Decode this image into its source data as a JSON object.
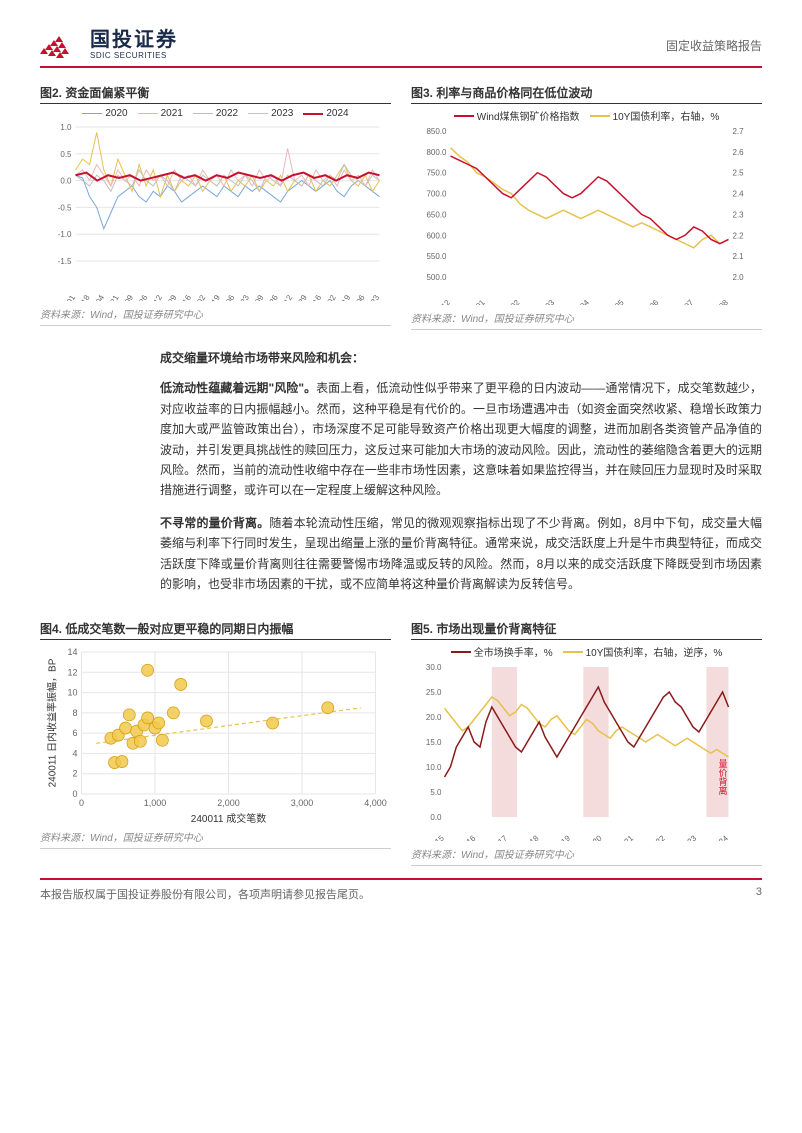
{
  "header": {
    "logo_cn": "国投证券",
    "logo_en": "SDIC SECURITIES",
    "report_type": "固定收益策略报告"
  },
  "chart2": {
    "title": "图2. 资金面偏紧平衡",
    "type": "line",
    "legend": [
      "2020",
      "2021",
      "2022",
      "2023",
      "2024"
    ],
    "colors": [
      "#7aa8d9",
      "#e6c24d",
      "#bfbfbf",
      "#e8b8b8",
      "#c8102e"
    ],
    "line_widths": [
      1,
      1,
      1,
      1,
      2
    ],
    "background_color": "#ffffff",
    "grid_color": "#e6e6e6",
    "ylim": [
      -1.5,
      1.0
    ],
    "ytick_step": 0.5,
    "x_labels": [
      "01-01",
      "01-18",
      "02-04",
      "02-21",
      "03-09",
      "03-26",
      "04-12",
      "04-29",
      "05-16",
      "06-02",
      "06-19",
      "07-06",
      "07-23",
      "08-09",
      "08-26",
      "09-12",
      "09-29",
      "10-16",
      "11-02",
      "11-19",
      "12-06",
      "12-23"
    ],
    "label_fontsize": 8,
    "series": {
      "2020": [
        0.1,
        0.05,
        -0.3,
        -0.5,
        -0.9,
        -0.6,
        -0.3,
        -0.2,
        -0.1,
        -0.3,
        -0.4,
        -0.2,
        -0.3,
        -0.1,
        -0.2,
        -0.4,
        -0.3,
        -0.2,
        -0.1,
        -0.2,
        -0.3,
        -0.1,
        -0.2,
        -0.3,
        -0.1,
        -0.2,
        -0.1,
        -0.2,
        -0.3,
        -0.4,
        -0.2,
        -0.1,
        0.0,
        -0.1,
        -0.2,
        -0.1,
        0.0,
        -0.2,
        -0.3,
        -0.1,
        0.0,
        -0.1,
        -0.2,
        -0.3
      ],
      "2021": [
        0.2,
        0.4,
        0.3,
        0.9,
        0.2,
        -0.1,
        0.4,
        0.1,
        -0.2,
        0.3,
        -0.1,
        0.2,
        -0.3,
        0.1,
        -0.2,
        0.0,
        -0.1,
        0.1,
        -0.2,
        0.0,
        -0.1,
        0.1,
        -0.2,
        0.0,
        -0.1,
        0.1,
        -0.2,
        0.0,
        -0.1,
        0.1,
        -0.2,
        0.0,
        -0.1,
        0.1,
        -0.2,
        0.0,
        -0.1,
        0.1,
        0.3,
        0.0,
        -0.1,
        0.1,
        -0.2,
        0.0
      ],
      "2022": [
        0.1,
        0.0,
        -0.1,
        0.1,
        0.0,
        -0.2,
        0.1,
        0.0,
        -0.1,
        0.2,
        0.0,
        -0.1,
        0.1,
        0.0,
        -0.2,
        0.1,
        0.0,
        -0.1,
        0.1,
        0.0,
        -0.1,
        0.1,
        0.0,
        -0.1,
        0.1,
        0.0,
        -0.2,
        0.1,
        0.0,
        -0.1,
        0.1,
        0.0,
        -0.1,
        0.1,
        0.0,
        -0.1,
        0.1,
        0.0,
        0.3,
        0.1,
        0.0,
        -0.1,
        0.1,
        0.0
      ],
      "2023": [
        0.1,
        0.2,
        0.0,
        0.3,
        0.1,
        -0.1,
        0.2,
        0.0,
        0.1,
        -0.1,
        0.2,
        0.0,
        0.1,
        -0.1,
        0.2,
        0.0,
        0.1,
        -0.1,
        0.2,
        0.0,
        0.1,
        -0.1,
        0.2,
        0.0,
        0.1,
        -0.1,
        0.2,
        0.0,
        0.1,
        -0.1,
        0.6,
        0.0,
        0.1,
        -0.1,
        0.2,
        0.0,
        0.1,
        -0.1,
        0.2,
        0.0,
        0.1,
        -0.1,
        0.2,
        0.0
      ],
      "2024": [
        0.1,
        0.15,
        0.0,
        0.1,
        0.05,
        0.1,
        0.0,
        0.05,
        0.1,
        0.15,
        0.05,
        0.1,
        0.0,
        0.1,
        0.05,
        0.15,
        0.1,
        0.05,
        0.1,
        0.0,
        0.1,
        0.15,
        0.05,
        0.1,
        0.0,
        0.1,
        0.05,
        0.15,
        0.1
      ]
    },
    "source": "资料来源：Wind，国投证券研究中心"
  },
  "chart3": {
    "title": "图3. 利率与商品价格同在低位波动",
    "type": "line",
    "legend": [
      "Wind煤焦钢矿价格指数",
      "10Y国债利率，右轴，%"
    ],
    "colors": [
      "#c8102e",
      "#e6c24d"
    ],
    "line_widths": [
      1.5,
      1.5
    ],
    "background_color": "#ffffff",
    "y1_lim": [
      500,
      850
    ],
    "y1_tick_step": 50,
    "y2_lim": [
      2.0,
      2.7
    ],
    "y2_tick_step": 0.1,
    "x_labels": [
      "23-12",
      "24-01",
      "24-02",
      "24-03",
      "24-04",
      "24-05",
      "24-06",
      "24-07",
      "24-08"
    ],
    "label_fontsize": 8,
    "series": {
      "index": [
        790,
        780,
        770,
        760,
        740,
        720,
        700,
        690,
        710,
        730,
        750,
        740,
        720,
        700,
        690,
        700,
        720,
        740,
        730,
        710,
        690,
        670,
        650,
        640,
        620,
        600,
        590,
        600,
        620,
        610,
        590,
        580,
        590
      ],
      "yield": [
        2.62,
        2.58,
        2.55,
        2.5,
        2.48,
        2.45,
        2.42,
        2.4,
        2.35,
        2.32,
        2.3,
        2.28,
        2.3,
        2.32,
        2.3,
        2.28,
        2.3,
        2.32,
        2.3,
        2.28,
        2.26,
        2.24,
        2.26,
        2.24,
        2.22,
        2.2,
        2.18,
        2.16,
        2.14,
        2.18,
        2.2,
        2.16,
        2.18
      ]
    },
    "source": "资料来源：Wind，国投证券研究中心"
  },
  "body": {
    "lead": "成交缩量环境给市场带来风险和机会：",
    "p1_bold": "低流动性蕴藏着远期\"风险\"。",
    "p1": "表面上看，低流动性似乎带来了更平稳的日内波动——通常情况下，成交笔数越少，对应收益率的日内振幅越小。然而，这种平稳是有代价的。一旦市场遭遇冲击（如资金面突然收紧、稳增长政策力度加大或严监管政策出台），市场深度不足可能导致资产价格出现更大幅度的调整，进而加剧各类资管产品净值的波动，并引发更具挑战性的赎回压力，这反过来可能加大市场的波动风险。因此，流动性的萎缩隐含着更大的远期风险。然而，当前的流动性收缩中存在一些非市场性因素，这意味着如果监控得当，并在赎回压力显现时及时采取措施进行调整，或许可以在一定程度上缓解这种风险。",
    "p2_bold": "不寻常的量价背离。",
    "p2": "随着本轮流动性压缩，常见的微观观察指标出现了不少背离。例如，8月中下旬，成交量大幅萎缩与利率下行同时发生，呈现出缩量上涨的量价背离特征。通常来说，成交活跃度上升是牛市典型特征，而成交活跃度下降或量价背离则往往需要警惕市场降温或反转的风险。然而，8月以来的成交活跃度下降既受到市场因素的影响，也受非市场因素的干扰，或不应简单将这种量价背离解读为反转信号。"
  },
  "chart4": {
    "title": "图4. 低成交笔数一般对应更平稳的同期日内振幅",
    "type": "scatter",
    "xlabel": "240011 成交笔数",
    "ylabel": "240011 日内收益率振幅，BP",
    "label_fontsize": 10,
    "background_color": "#ffffff",
    "grid_color": "#e6e6e6",
    "xlim": [
      0,
      4000
    ],
    "xtick_step": 1000,
    "ylim": [
      0,
      14
    ],
    "ytick_step": 2,
    "marker_color": "#f2c94c",
    "marker_edge": "#d4a017",
    "marker_size": 6,
    "trend_color": "#e6c24d",
    "trend_dash": "4 3",
    "points": [
      [
        400,
        5.5
      ],
      [
        450,
        3.1
      ],
      [
        500,
        5.8
      ],
      [
        550,
        3.2
      ],
      [
        600,
        6.5
      ],
      [
        650,
        7.8
      ],
      [
        700,
        5.0
      ],
      [
        750,
        6.2
      ],
      [
        800,
        5.2
      ],
      [
        850,
        6.8
      ],
      [
        900,
        7.5
      ],
      [
        900,
        12.2
      ],
      [
        1000,
        6.5
      ],
      [
        1050,
        7.0
      ],
      [
        1100,
        5.3
      ],
      [
        1350,
        10.8
      ],
      [
        1250,
        8.0
      ],
      [
        1700,
        7.2
      ],
      [
        2600,
        7.0
      ],
      [
        3350,
        8.5
      ]
    ],
    "trend": [
      [
        200,
        5.0
      ],
      [
        3800,
        8.5
      ]
    ],
    "source": "资料来源：Wind，国投证券研究中心"
  },
  "chart5": {
    "title": "图5. 市场出现量价背离特征",
    "type": "line",
    "legend": [
      "全市场换手率，%",
      "10Y国债利率，右轴，逆序，%"
    ],
    "colors": [
      "#8b1a1a",
      "#e6c24d"
    ],
    "line_widths": [
      1.5,
      1.5
    ],
    "background_color": "#ffffff",
    "shade_color": "#f5dcdc",
    "annotation": "量价背离",
    "annotation_color": "#c8102e",
    "y1_lim": [
      0,
      30
    ],
    "y1_tick_step": 5,
    "y2_lim": [
      4.5,
      0.5
    ],
    "y2_tick_step": 0.5,
    "x_labels": [
      "2015",
      "2016",
      "2017",
      "2018",
      "2019",
      "2020",
      "2021",
      "2022",
      "2023",
      "2024"
    ],
    "label_fontsize": 8,
    "shaded_regions": [
      [
        1.5,
        2.3
      ],
      [
        4.4,
        5.2
      ],
      [
        8.3,
        9.0
      ]
    ],
    "series": {
      "turnover": [
        8,
        10,
        14,
        16,
        18,
        15,
        14,
        19,
        22,
        20,
        18,
        16,
        14,
        13,
        15,
        17,
        19,
        16,
        14,
        12,
        14,
        16,
        18,
        20,
        22,
        24,
        26,
        23,
        21,
        19,
        17,
        15,
        14,
        16,
        18,
        20,
        22,
        24,
        25,
        23,
        22,
        20,
        18,
        17,
        19,
        21,
        23,
        25,
        22
      ],
      "yield": [
        3.4,
        3.2,
        3.0,
        2.8,
        2.9,
        3.1,
        3.3,
        3.5,
        3.7,
        3.6,
        3.4,
        3.2,
        3.3,
        3.5,
        3.4,
        3.2,
        3.0,
        2.9,
        3.1,
        3.2,
        3.0,
        2.8,
        2.7,
        2.9,
        3.1,
        3.0,
        2.8,
        2.7,
        2.6,
        2.8,
        2.9,
        2.8,
        2.7,
        2.6,
        2.5,
        2.6,
        2.7,
        2.6,
        2.5,
        2.4,
        2.5,
        2.6,
        2.5,
        2.4,
        2.3,
        2.2,
        2.3,
        2.2,
        2.1
      ]
    },
    "source": "资料来源：Wind，国投证券研究中心"
  },
  "footer": {
    "disclaimer": "本报告版权属于国投证券股份有限公司，各项声明请参见报告尾页。",
    "page_number": "3"
  },
  "colors": {
    "brand_red": "#c8102e",
    "brand_navy": "#1a2a4a"
  }
}
